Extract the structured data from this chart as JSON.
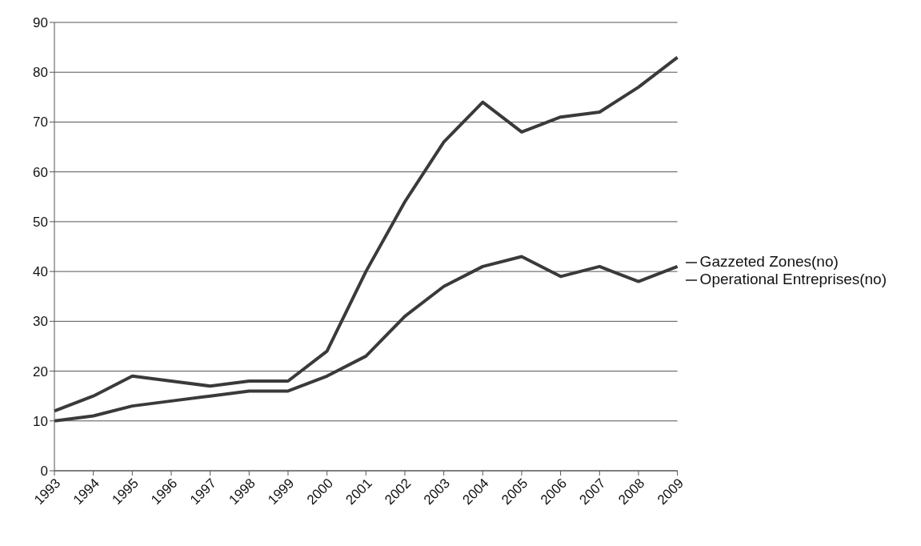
{
  "chart_data": {
    "type": "line",
    "categories": [
      "1993",
      "1994",
      "1995",
      "1996",
      "1997",
      "1998",
      "1999",
      "2000",
      "2001",
      "2002",
      "2003",
      "2004",
      "2005",
      "2006",
      "2007",
      "2008",
      "2009"
    ],
    "series": [
      {
        "name": "Gazzeted Zones(no)",
        "color": "#3a3a3a",
        "values": [
          10,
          11,
          13,
          14,
          15,
          16,
          16,
          19,
          23,
          31,
          37,
          41,
          43,
          39,
          41,
          38,
          41
        ]
      },
      {
        "name": "Operational Entreprises(no)",
        "color": "#3a3a3a",
        "values": [
          12,
          15,
          19,
          18,
          17,
          18,
          18,
          24,
          40,
          54,
          66,
          74,
          68,
          71,
          72,
          77,
          83
        ]
      }
    ],
    "ylim": [
      0,
      90
    ],
    "yticks": [
      0,
      10,
      20,
      30,
      40,
      50,
      60,
      70,
      80,
      90
    ],
    "grid": "y",
    "legend": "right",
    "marker": "none",
    "line_style": "solid"
  }
}
